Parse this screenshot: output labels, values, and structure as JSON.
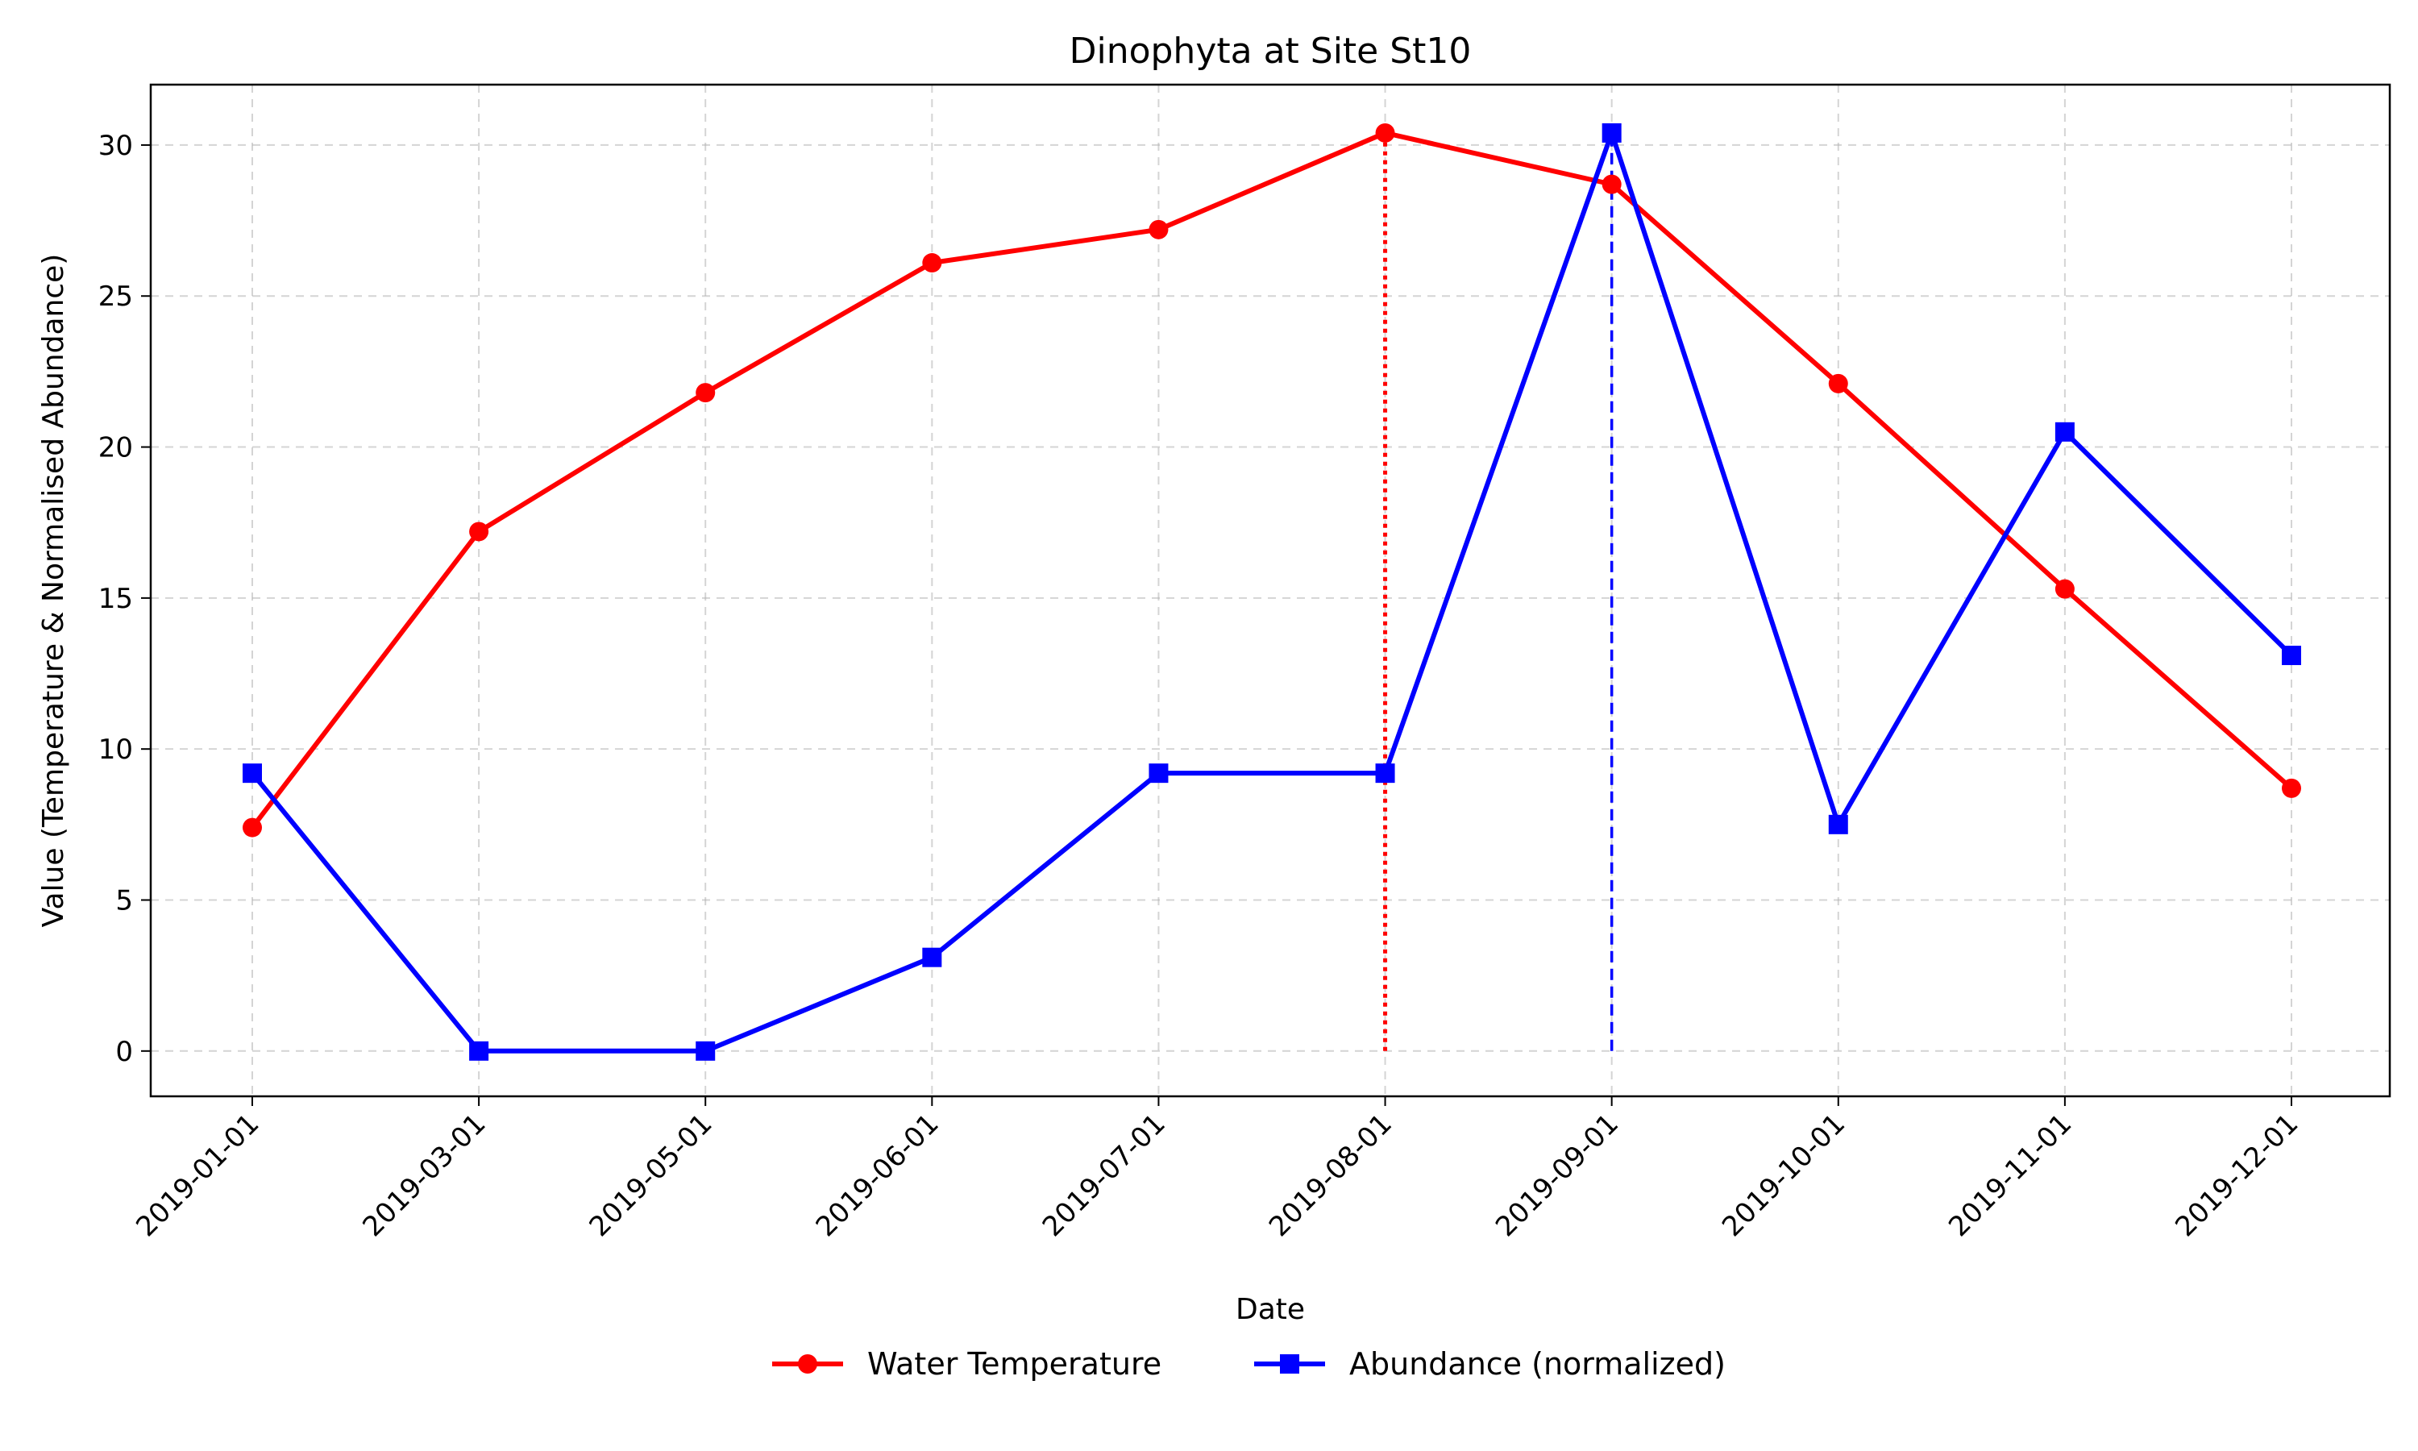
{
  "chart_data": {
    "type": "line",
    "title": "Dinophyta at Site St10",
    "xlabel": "Date",
    "ylabel": "Value (Temperature & Normalised Abundance)",
    "categories": [
      "2019-01-01",
      "2019-03-01",
      "2019-05-01",
      "2019-06-01",
      "2019-07-01",
      "2019-08-01",
      "2019-09-01",
      "2019-10-01",
      "2019-11-01",
      "2019-12-01"
    ],
    "yticks": [
      0,
      5,
      10,
      15,
      20,
      25,
      30
    ],
    "ylim": [
      -1.5,
      32
    ],
    "grid": true,
    "legend_position": "bottom-center",
    "series": [
      {
        "name": "Water Temperature",
        "color": "#ff0000",
        "marker": "circle",
        "values": [
          7.4,
          17.2,
          21.8,
          26.1,
          27.2,
          30.4,
          28.7,
          22.1,
          15.3,
          8.7
        ]
      },
      {
        "name": "Abundance (normalized)",
        "color": "#0000ff",
        "marker": "square",
        "values": [
          9.2,
          0.0,
          0.0,
          3.1,
          9.2,
          9.2,
          30.4,
          7.5,
          20.5,
          13.1
        ]
      }
    ],
    "reference_lines": [
      {
        "at": "2019-08-01",
        "from": 0,
        "to": 30.4,
        "color": "#ff0000",
        "style": "dotted"
      },
      {
        "at": "2019-09-01",
        "from": 0,
        "to": 30.4,
        "color": "#0000ff",
        "style": "dashed"
      }
    ]
  }
}
